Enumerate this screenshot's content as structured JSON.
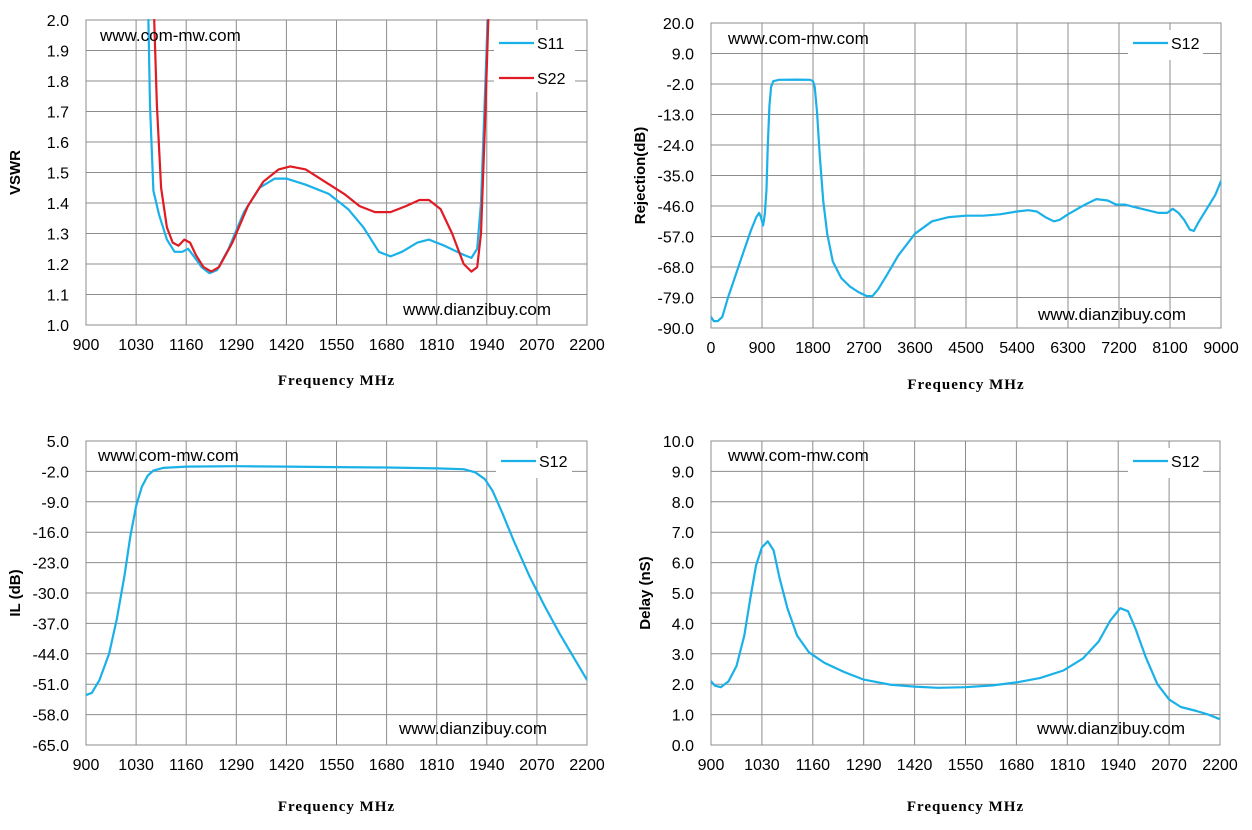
{
  "chart_data": [
    {
      "type": "line",
      "ylabel": "VSWR",
      "xlabel": "Frequency MHz",
      "xlim": [
        900,
        2200
      ],
      "ylim": [
        1.0,
        2.0
      ],
      "xticks": [
        "900",
        "1030",
        "1160",
        "1290",
        "1420",
        "1550",
        "1680",
        "1810",
        "1940",
        "2070",
        "2200"
      ],
      "yticks": [
        "1.0",
        "1.1",
        "1.2",
        "1.3",
        "1.4",
        "1.5",
        "1.6",
        "1.7",
        "1.8",
        "1.9",
        "2.0"
      ],
      "legend_position": "top-right",
      "watermarks": [
        "www.com-mw.com",
        "www.dianzibuy.com"
      ],
      "series": [
        {
          "name": "S11",
          "color": "#1ab0e8",
          "points": [
            [
              1062,
              2.0
            ],
            [
              1066,
              1.72
            ],
            [
              1075,
              1.44
            ],
            [
              1090,
              1.36
            ],
            [
              1110,
              1.28
            ],
            [
              1130,
              1.24
            ],
            [
              1150,
              1.24
            ],
            [
              1165,
              1.25
            ],
            [
              1180,
              1.225
            ],
            [
              1200,
              1.19
            ],
            [
              1220,
              1.17
            ],
            [
              1240,
              1.18
            ],
            [
              1270,
              1.25
            ],
            [
              1310,
              1.37
            ],
            [
              1350,
              1.45
            ],
            [
              1390,
              1.48
            ],
            [
              1420,
              1.48
            ],
            [
              1470,
              1.46
            ],
            [
              1530,
              1.43
            ],
            [
              1580,
              1.38
            ],
            [
              1620,
              1.32
            ],
            [
              1660,
              1.24
            ],
            [
              1690,
              1.225
            ],
            [
              1720,
              1.24
            ],
            [
              1760,
              1.27
            ],
            [
              1790,
              1.28
            ],
            [
              1830,
              1.26
            ],
            [
              1880,
              1.23
            ],
            [
              1900,
              1.22
            ],
            [
              1915,
              1.25
            ],
            [
              1925,
              1.4
            ],
            [
              1935,
              1.75
            ],
            [
              1942,
              2.0
            ]
          ]
        },
        {
          "name": "S22",
          "color": "#e01b23",
          "points": [
            [
              1077,
              2.0
            ],
            [
              1084,
              1.72
            ],
            [
              1095,
              1.45
            ],
            [
              1110,
              1.32
            ],
            [
              1125,
              1.27
            ],
            [
              1140,
              1.26
            ],
            [
              1155,
              1.28
            ],
            [
              1170,
              1.27
            ],
            [
              1185,
              1.23
            ],
            [
              1205,
              1.19
            ],
            [
              1225,
              1.175
            ],
            [
              1245,
              1.19
            ],
            [
              1280,
              1.27
            ],
            [
              1320,
              1.39
            ],
            [
              1360,
              1.47
            ],
            [
              1400,
              1.51
            ],
            [
              1430,
              1.52
            ],
            [
              1470,
              1.51
            ],
            [
              1520,
              1.47
            ],
            [
              1570,
              1.43
            ],
            [
              1610,
              1.39
            ],
            [
              1650,
              1.37
            ],
            [
              1690,
              1.37
            ],
            [
              1730,
              1.39
            ],
            [
              1765,
              1.41
            ],
            [
              1790,
              1.41
            ],
            [
              1820,
              1.38
            ],
            [
              1850,
              1.3
            ],
            [
              1880,
              1.2
            ],
            [
              1900,
              1.175
            ],
            [
              1915,
              1.19
            ],
            [
              1925,
              1.3
            ],
            [
              1935,
              1.65
            ],
            [
              1944,
              2.0
            ]
          ]
        }
      ]
    },
    {
      "type": "line",
      "ylabel": "Rejection(dB)",
      "xlabel": "Frequency MHz",
      "xlim": [
        0,
        9000
      ],
      "ylim": [
        -90.0,
        20.0
      ],
      "xticks": [
        "0",
        "900",
        "1800",
        "2700",
        "3600",
        "4500",
        "5400",
        "6300",
        "7200",
        "8100",
        "9000"
      ],
      "yticks": [
        "-90.0",
        "-79.0",
        "-68.0",
        "-57.0",
        "-46.0",
        "-35.0",
        "-24.0",
        "-13.0",
        "-2.0",
        "9.0",
        "20.0"
      ],
      "legend_position": "top-right",
      "watermarks": [
        "www.com-mw.com",
        "www.dianzibuy.com"
      ],
      "series": [
        {
          "name": "S12",
          "color": "#1ab0e8",
          "points": [
            [
              0,
              -86
            ],
            [
              50,
              -87.5
            ],
            [
              120,
              -87.5
            ],
            [
              200,
              -86
            ],
            [
              300,
              -79
            ],
            [
              400,
              -73
            ],
            [
              500,
              -67
            ],
            [
              600,
              -61
            ],
            [
              700,
              -55
            ],
            [
              800,
              -50
            ],
            [
              850,
              -48.5
            ],
            [
              880,
              -50
            ],
            [
              920,
              -53
            ],
            [
              950,
              -49
            ],
            [
              980,
              -40
            ],
            [
              1000,
              -25
            ],
            [
              1030,
              -10
            ],
            [
              1060,
              -3
            ],
            [
              1100,
              -1
            ],
            [
              1200,
              -0.5
            ],
            [
              1500,
              -0.4
            ],
            [
              1750,
              -0.5
            ],
            [
              1800,
              -1
            ],
            [
              1830,
              -3
            ],
            [
              1870,
              -12
            ],
            [
              1920,
              -28
            ],
            [
              1980,
              -44
            ],
            [
              2050,
              -56
            ],
            [
              2150,
              -66
            ],
            [
              2300,
              -72
            ],
            [
              2450,
              -75
            ],
            [
              2600,
              -77
            ],
            [
              2750,
              -78.5
            ],
            [
              2850,
              -78.5
            ],
            [
              2950,
              -76
            ],
            [
              3100,
              -71
            ],
            [
              3300,
              -64
            ],
            [
              3600,
              -56
            ],
            [
              3900,
              -51.5
            ],
            [
              4200,
              -50
            ],
            [
              4500,
              -49.5
            ],
            [
              4800,
              -49.5
            ],
            [
              5100,
              -49
            ],
            [
              5400,
              -48
            ],
            [
              5600,
              -47.5
            ],
            [
              5750,
              -48
            ],
            [
              5900,
              -50
            ],
            [
              6050,
              -51.5
            ],
            [
              6150,
              -51
            ],
            [
              6300,
              -49
            ],
            [
              6600,
              -45.5
            ],
            [
              6800,
              -43.5
            ],
            [
              7000,
              -44
            ],
            [
              7150,
              -45.5
            ],
            [
              7300,
              -45.5
            ],
            [
              7500,
              -46.5
            ],
            [
              7700,
              -47.5
            ],
            [
              7900,
              -48.5
            ],
            [
              8050,
              -48.5
            ],
            [
              8150,
              -47
            ],
            [
              8250,
              -48.5
            ],
            [
              8350,
              -51
            ],
            [
              8450,
              -54.5
            ],
            [
              8520,
              -55
            ],
            [
              8600,
              -52
            ],
            [
              8750,
              -47
            ],
            [
              8900,
              -42
            ],
            [
              9000,
              -37
            ]
          ]
        }
      ]
    },
    {
      "type": "line",
      "ylabel": "IL (dB)",
      "xlabel": "Frequency MHz",
      "xlim": [
        900,
        2200
      ],
      "ylim": [
        -65.0,
        5.0
      ],
      "xticks": [
        "900",
        "1030",
        "1160",
        "1290",
        "1420",
        "1550",
        "1680",
        "1810",
        "1940",
        "2070",
        "2200"
      ],
      "yticks": [
        "-65.0",
        "-58.0",
        "-51.0",
        "-44.0",
        "-37.0",
        "-30.0",
        "-23.0",
        "-16.0",
        "-9.0",
        "-2.0",
        "5.0"
      ],
      "legend_position": "top-right",
      "watermarks": [
        "www.com-mw.com",
        "www.dianzibuy.com"
      ],
      "series": [
        {
          "name": "S12",
          "color": "#1ab0e8",
          "points": [
            [
              900,
              -53.5
            ],
            [
              915,
              -53
            ],
            [
              935,
              -50
            ],
            [
              960,
              -44
            ],
            [
              980,
              -36
            ],
            [
              1000,
              -26
            ],
            [
              1015,
              -17
            ],
            [
              1030,
              -10
            ],
            [
              1045,
              -5.5
            ],
            [
              1060,
              -3
            ],
            [
              1075,
              -1.8
            ],
            [
              1100,
              -1.2
            ],
            [
              1160,
              -0.9
            ],
            [
              1290,
              -0.8
            ],
            [
              1420,
              -0.9
            ],
            [
              1550,
              -1.0
            ],
            [
              1680,
              -1.1
            ],
            [
              1810,
              -1.3
            ],
            [
              1880,
              -1.5
            ],
            [
              1910,
              -2.2
            ],
            [
              1935,
              -3.8
            ],
            [
              1955,
              -6.5
            ],
            [
              1980,
              -11.5
            ],
            [
              2010,
              -18
            ],
            [
              2050,
              -26
            ],
            [
              2090,
              -33
            ],
            [
              2130,
              -39.5
            ],
            [
              2170,
              -45.5
            ],
            [
              2200,
              -50
            ]
          ]
        }
      ]
    },
    {
      "type": "line",
      "ylabel": "Delay (nS)",
      "xlabel": "Frequency MHz",
      "xlim": [
        900,
        2200
      ],
      "ylim": [
        0.0,
        10.0
      ],
      "xticks": [
        "900",
        "1030",
        "1160",
        "1290",
        "1420",
        "1550",
        "1680",
        "1810",
        "1940",
        "2070",
        "2200"
      ],
      "yticks": [
        "0.0",
        "1.0",
        "2.0",
        "3.0",
        "4.0",
        "5.0",
        "6.0",
        "7.0",
        "8.0",
        "9.0",
        "10.0"
      ],
      "legend_position": "top-right",
      "watermarks": [
        "www.com-mw.com",
        "www.dianzibuy.com"
      ],
      "series": [
        {
          "name": "S12",
          "color": "#1ab0e8",
          "points": [
            [
              900,
              2.1
            ],
            [
              910,
              1.95
            ],
            [
              925,
              1.9
            ],
            [
              945,
              2.1
            ],
            [
              965,
              2.6
            ],
            [
              985,
              3.6
            ],
            [
              1000,
              4.8
            ],
            [
              1015,
              5.9
            ],
            [
              1030,
              6.5
            ],
            [
              1045,
              6.7
            ],
            [
              1060,
              6.4
            ],
            [
              1075,
              5.5
            ],
            [
              1095,
              4.5
            ],
            [
              1120,
              3.6
            ],
            [
              1150,
              3.05
            ],
            [
              1190,
              2.7
            ],
            [
              1240,
              2.4
            ],
            [
              1290,
              2.15
            ],
            [
              1360,
              1.98
            ],
            [
              1420,
              1.92
            ],
            [
              1480,
              1.88
            ],
            [
              1550,
              1.9
            ],
            [
              1620,
              1.96
            ],
            [
              1680,
              2.06
            ],
            [
              1740,
              2.2
            ],
            [
              1800,
              2.45
            ],
            [
              1850,
              2.85
            ],
            [
              1890,
              3.4
            ],
            [
              1920,
              4.1
            ],
            [
              1945,
              4.5
            ],
            [
              1965,
              4.4
            ],
            [
              1985,
              3.8
            ],
            [
              2010,
              2.9
            ],
            [
              2040,
              2.0
            ],
            [
              2070,
              1.5
            ],
            [
              2100,
              1.25
            ],
            [
              2140,
              1.12
            ],
            [
              2170,
              1.0
            ],
            [
              2200,
              0.85
            ]
          ]
        }
      ]
    }
  ]
}
